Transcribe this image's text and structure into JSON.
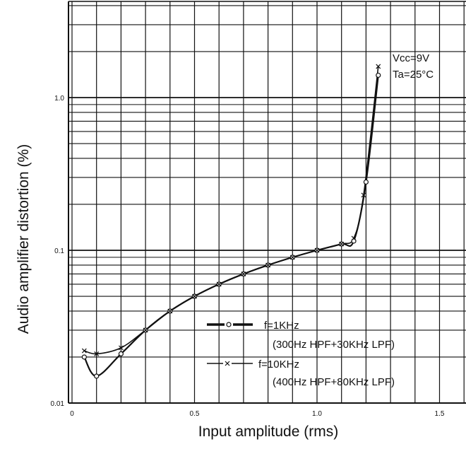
{
  "chart_data": {
    "type": "line",
    "xlabel": "Input amplitude (rms)",
    "ylabel": "Audio amplifier distortion (%)",
    "xlim": [
      0,
      1.6
    ],
    "ylim": [
      0.01,
      4
    ],
    "yscale": "log",
    "x_ticks": [
      0,
      0.5,
      1.0,
      1.5
    ],
    "x_tick_labels": [
      "0",
      "0.5",
      "1.0",
      "1.5"
    ],
    "y_ticks": [
      0.01,
      0.1,
      1.0
    ],
    "y_tick_labels": [
      "0.01",
      "0.1",
      "1.0"
    ],
    "grid": true,
    "annotations": [
      "Vcc=9V",
      "Ta=25°C"
    ],
    "series": [
      {
        "name": "f=1KHz",
        "note": "(300Hz HPF+30KHz LPF)",
        "marker": "circle",
        "x": [
          0.05,
          0.1,
          0.2,
          0.3,
          0.4,
          0.5,
          0.6,
          0.7,
          0.8,
          0.9,
          1.0,
          1.1,
          1.15,
          1.2,
          1.25
        ],
        "y": [
          0.02,
          0.015,
          0.021,
          0.03,
          0.04,
          0.05,
          0.06,
          0.07,
          0.08,
          0.09,
          0.1,
          0.11,
          0.115,
          0.28,
          1.4
        ]
      },
      {
        "name": "f=10KHz",
        "note": "(400Hz HPF+80KHz LPF)",
        "marker": "x",
        "x": [
          0.05,
          0.1,
          0.2,
          0.3,
          0.4,
          0.5,
          0.6,
          0.7,
          0.8,
          0.9,
          1.0,
          1.1,
          1.15,
          1.19,
          1.25
        ],
        "y": [
          0.022,
          0.021,
          0.023,
          0.03,
          0.04,
          0.05,
          0.06,
          0.07,
          0.08,
          0.09,
          0.1,
          0.11,
          0.12,
          0.23,
          1.6
        ]
      }
    ]
  }
}
